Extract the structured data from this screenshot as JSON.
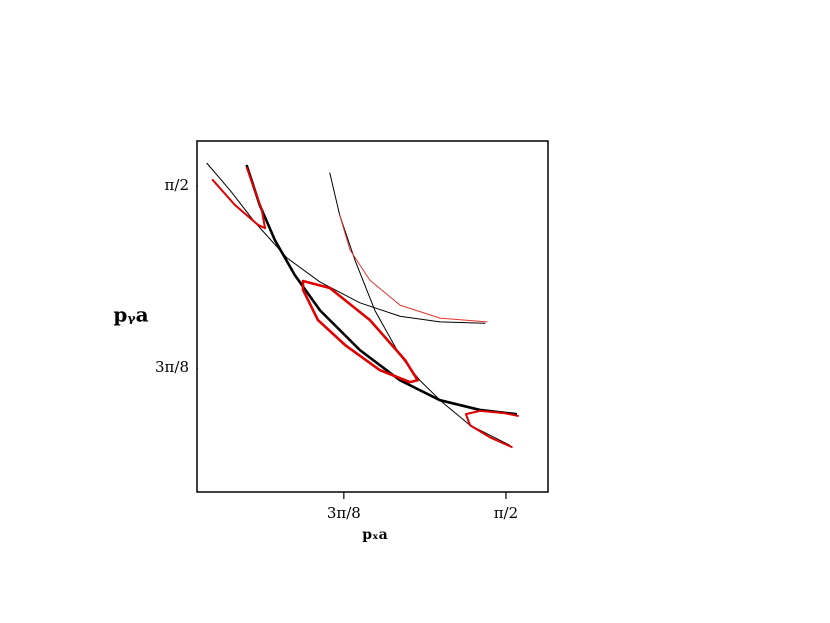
{
  "chart_data": {
    "type": "line",
    "xlabel": "pₓa",
    "ylabel": "pᵧa",
    "xlim": [
      0.822,
      1.673
    ],
    "ylim": [
      0.911,
      1.668
    ],
    "xticks": [
      {
        "value": 1.178,
        "label": "3π/8"
      },
      {
        "value": 1.571,
        "label": "π/2"
      }
    ],
    "yticks": [
      {
        "value": 1.178,
        "label": "3π/8"
      },
      {
        "value": 1.571,
        "label": "π/2"
      }
    ],
    "series": [
      {
        "color": "#000000",
        "width": 1,
        "x": [
          0.846,
          0.902,
          0.962,
          1.04,
          1.12,
          1.217,
          1.314,
          1.411,
          1.52
        ],
        "values": [
          1.62,
          1.562,
          1.493,
          1.416,
          1.364,
          1.319,
          1.29,
          1.278,
          1.275
        ]
      },
      {
        "color": "#000000",
        "width": 1,
        "x": [
          1.144,
          1.168,
          1.205,
          1.253,
          1.314,
          1.362,
          1.416,
          1.484,
          1.58
        ],
        "values": [
          1.599,
          1.508,
          1.411,
          1.303,
          1.206,
          1.152,
          1.105,
          1.055,
          1.012
        ]
      },
      {
        "color": "#000000",
        "width": 2.6,
        "x": [
          0.943,
          0.974,
          1.011,
          1.059,
          1.12,
          1.217,
          1.314,
          1.411,
          1.508,
          1.595
        ],
        "values": [
          1.614,
          1.53,
          1.454,
          1.379,
          1.303,
          1.217,
          1.152,
          1.109,
          1.088,
          1.079
        ]
      },
      {
        "color": "#e8332e",
        "width": 1,
        "x": [
          1.168,
          1.193,
          1.241,
          1.314,
          1.411,
          1.525
        ],
        "values": [
          1.508,
          1.433,
          1.368,
          1.314,
          1.286,
          1.278
        ]
      },
      {
        "color": "#e00000",
        "width": 2,
        "x": [
          0.86,
          0.914,
          0.97,
          0.987,
          0.979,
          0.962,
          0.943
        ],
        "values": [
          1.584,
          1.53,
          1.487,
          1.48,
          1.519,
          1.562,
          1.61
        ]
      },
      {
        "color": "#e00000",
        "width": 2.6,
        "x": [
          1.079,
          1.144,
          1.241,
          1.326,
          1.357,
          1.338,
          1.265,
          1.181,
          1.115,
          1.079,
          1.079
        ],
        "values": [
          1.366,
          1.351,
          1.282,
          1.196,
          1.152,
          1.148,
          1.174,
          1.228,
          1.282,
          1.347,
          1.366
        ]
      },
      {
        "color": "#e00000",
        "width": 2,
        "x": [
          1.585,
          1.532,
          1.484,
          1.474,
          1.508,
          1.568,
          1.6
        ],
        "values": [
          1.008,
          1.029,
          1.055,
          1.079,
          1.086,
          1.081,
          1.075
        ]
      }
    ]
  }
}
